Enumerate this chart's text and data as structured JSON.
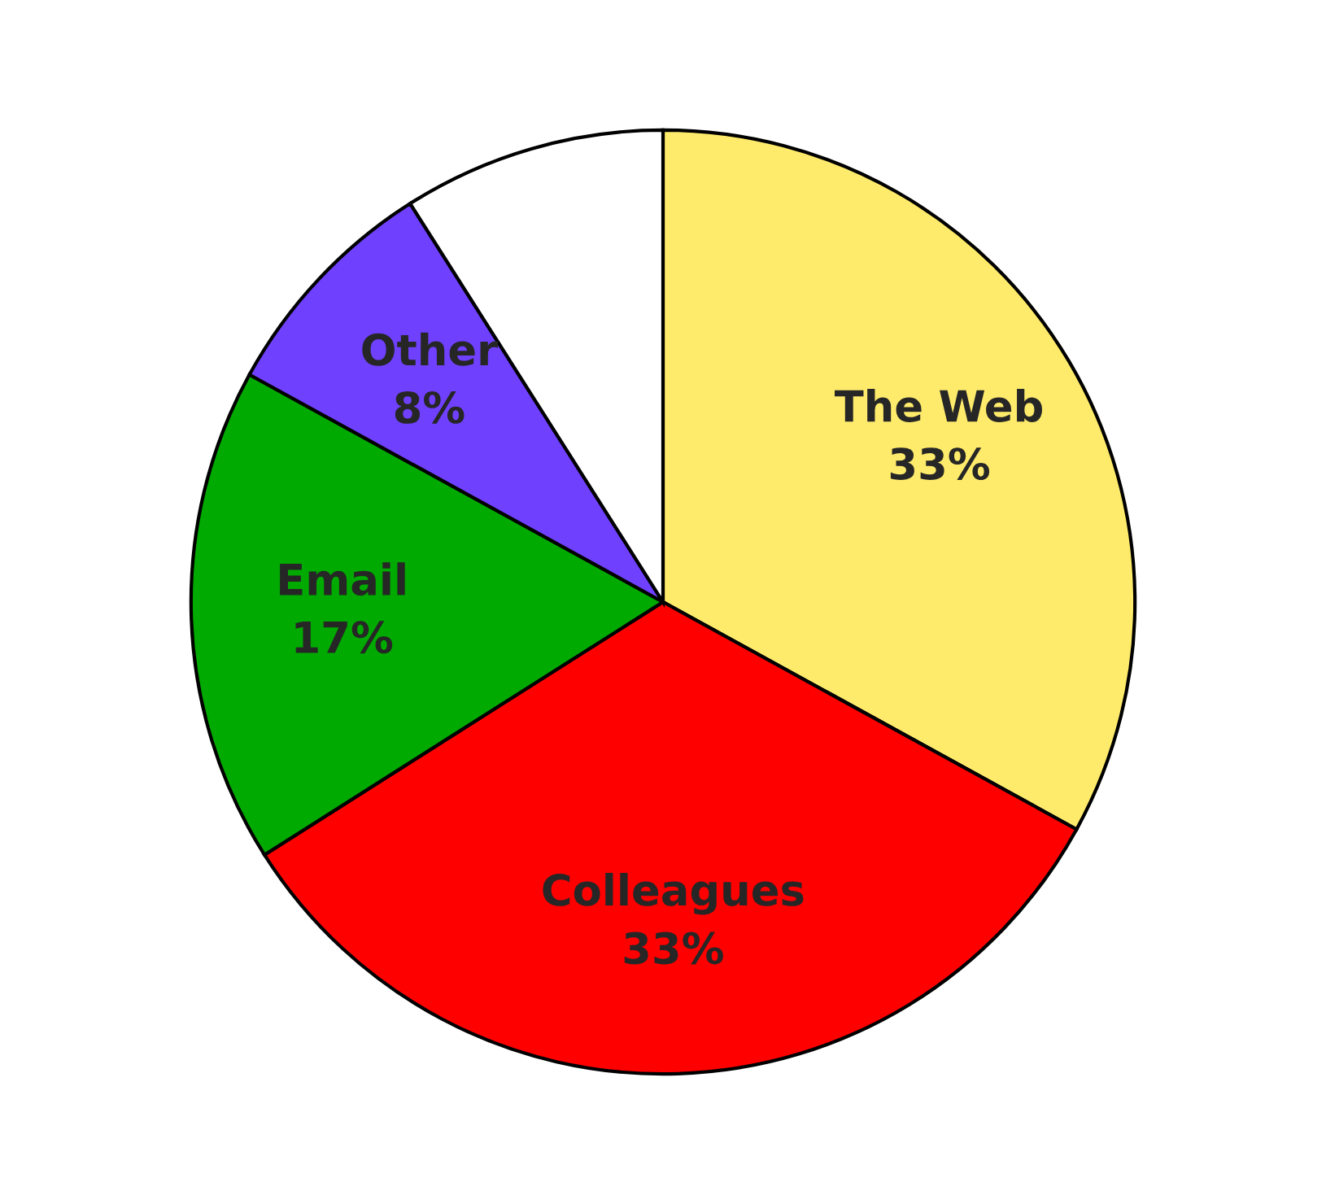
{
  "chart_data": {
    "type": "pie",
    "categories": [
      "The Web",
      "Colleagues",
      "Email",
      "Other",
      null
    ],
    "values": [
      33,
      33,
      17,
      8,
      9
    ],
    "colors": [
      "#ffeb6b",
      "#ff0000",
      "#00aa00",
      "#7040ff",
      "#ffffff"
    ],
    "value_labels": [
      "33%",
      "33%",
      "17%",
      "8%",
      null
    ]
  }
}
